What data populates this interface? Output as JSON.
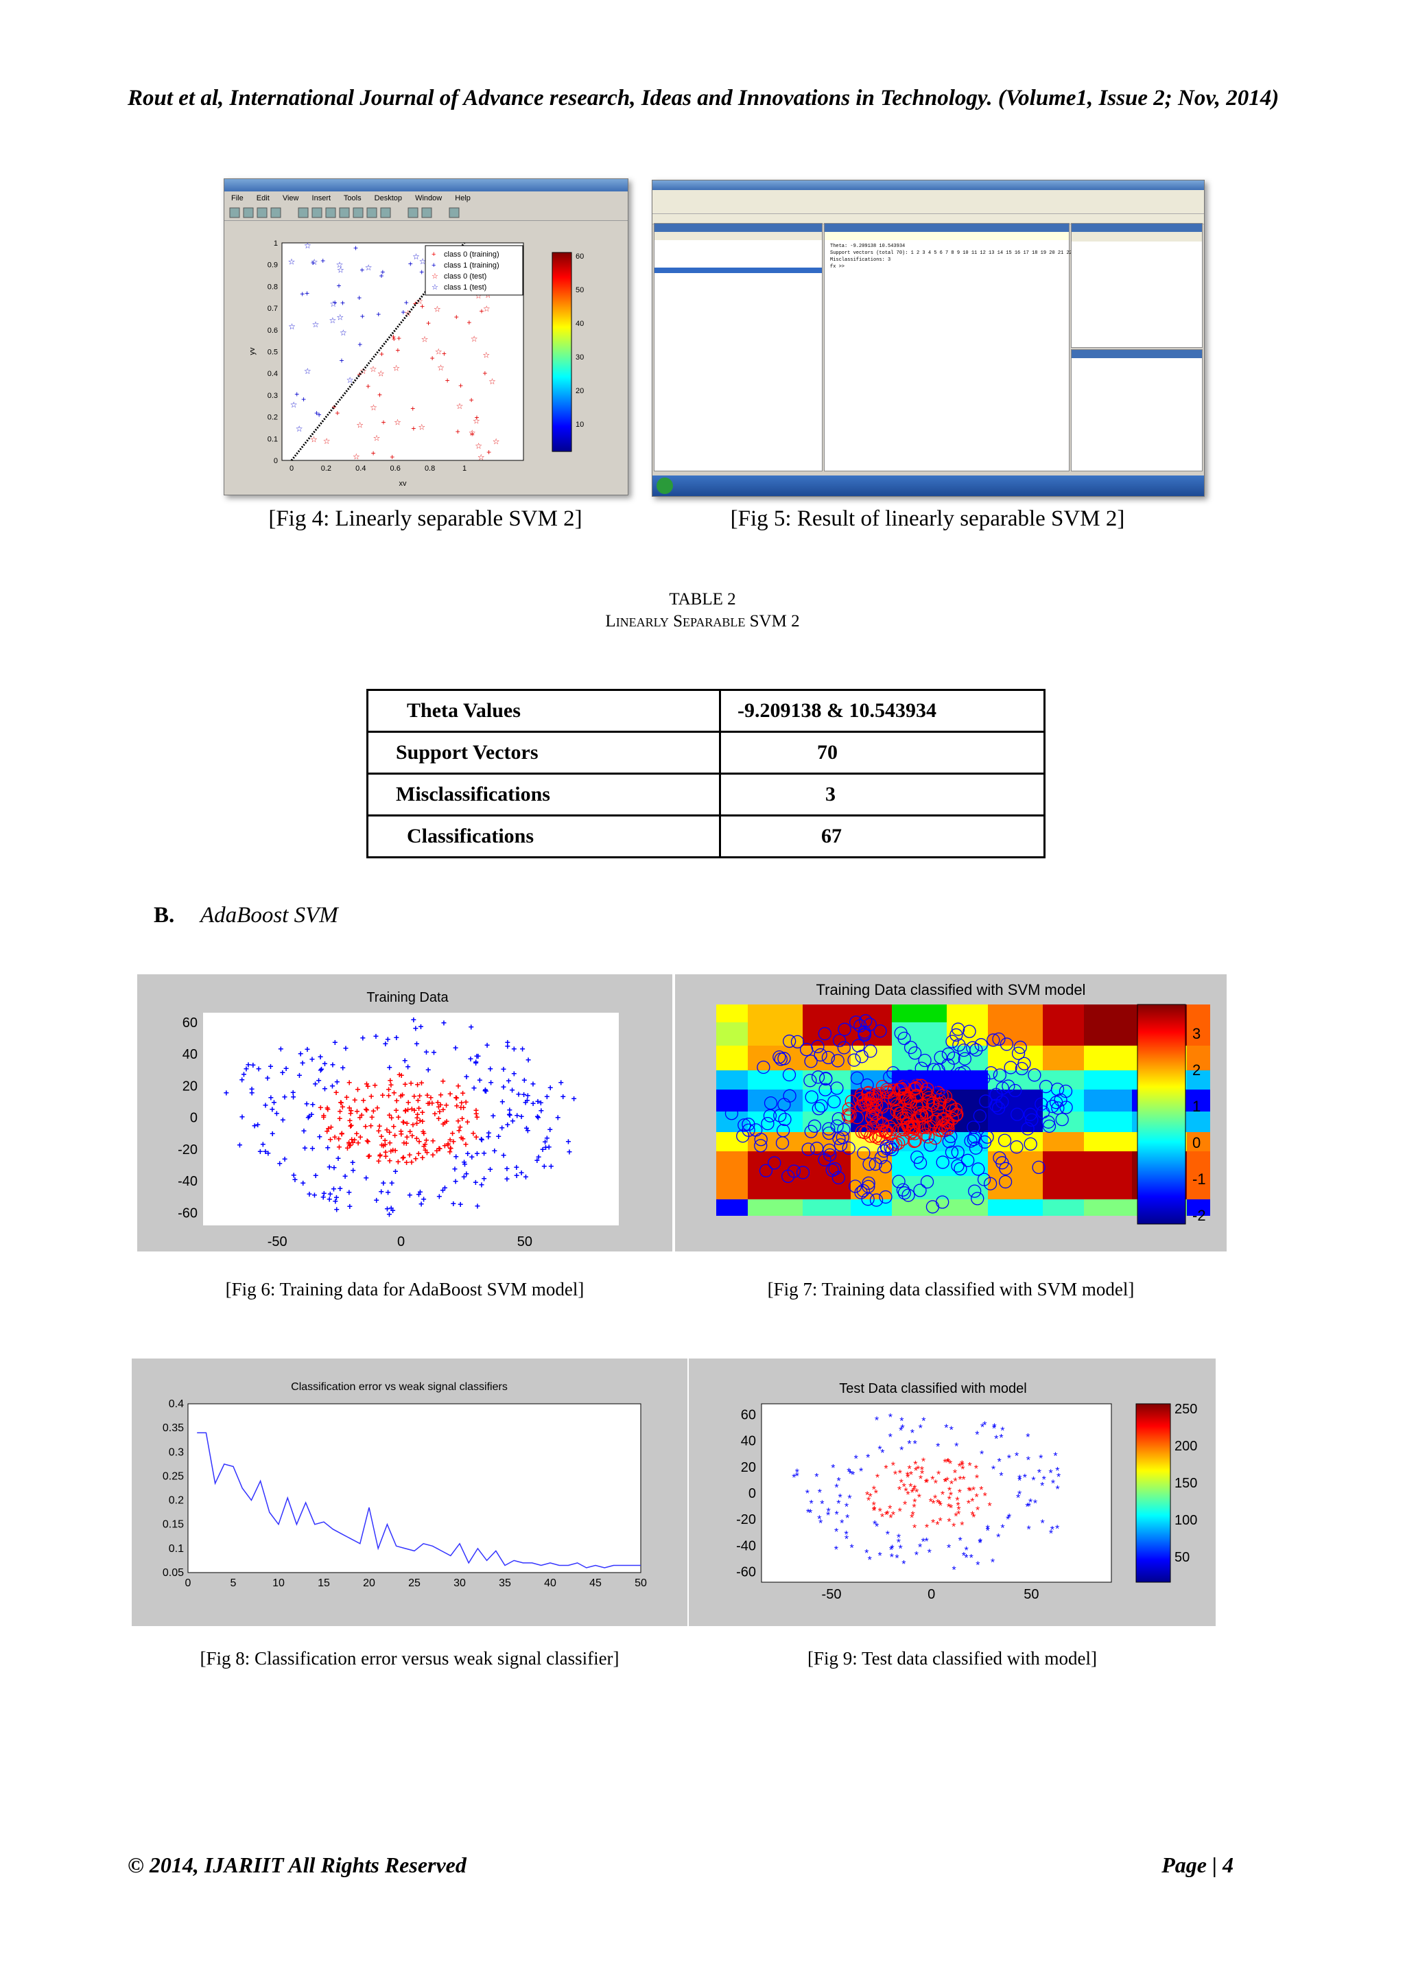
{
  "header": {
    "citation": "Rout et al, International Journal of Advance research, Ideas and Innovations in Technology. (Volume1, Issue 2; Nov, 2014)"
  },
  "fig4": {
    "caption": "[Fig 4: Linearly separable SVM 2]",
    "menu": [
      "File",
      "Edit",
      "View",
      "Insert",
      "Tools",
      "Desktop",
      "Window",
      "Help"
    ],
    "legend": [
      "class 0 (training)",
      "class 1 (training)",
      "class 0 (test)",
      "class 1 (test)"
    ],
    "xlabel": "xv",
    "ylabel": "yv",
    "xticks": [
      "0",
      "0.2",
      "0.4",
      "0.6",
      "0.8",
      "1"
    ],
    "yticks": [
      "0",
      "0.1",
      "0.2",
      "0.3",
      "0.4",
      "0.5",
      "0.6",
      "0.7",
      "0.8",
      "0.9",
      "1"
    ],
    "colorbar_ticks": [
      "10",
      "20",
      "30",
      "40",
      "50",
      "60"
    ]
  },
  "fig5": {
    "caption": "[Fig 5: Result of linearly separable SVM 2]",
    "command_window_lines": [
      "Theta: -9.209138 10.543934",
      "Support vectors (total 70): 1 2 3 4 5 6 7 8 9 10 11 12 13 14 15 16 17 18 19 20 21 22",
      "Misclassifications: 3",
      "fx >>"
    ]
  },
  "table2": {
    "number": "TABLE 2",
    "title": "Linearly Separable SVM 2",
    "rows": [
      {
        "label": "Theta Values",
        "value": "-9.209138 & 10.543934"
      },
      {
        "label": "Support Vectors",
        "value": "70"
      },
      {
        "label": "Misclassifications",
        "value": "3"
      },
      {
        "label": "Classifications",
        "value": "67"
      }
    ]
  },
  "section": {
    "letter": "B.",
    "title": "AdaBoost SVM"
  },
  "fig6": {
    "caption": "[Fig 6: Training data for AdaBoost SVM model]",
    "chart_data": {
      "type": "scatter",
      "title": "Training Data",
      "xticks": [
        "-50",
        "0",
        "50"
      ],
      "yticks": [
        "60",
        "40",
        "20",
        "0",
        "-20",
        "-40",
        "-60"
      ],
      "xlim": [
        -80,
        88
      ],
      "ylim": [
        -68,
        66
      ],
      "colors": {
        "outer": "#0000ff",
        "inner": "#ff0000"
      }
    }
  },
  "fig7": {
    "caption": "[Fig 7: Training data classified with SVM model]",
    "chart_data": {
      "type": "heatmap",
      "title": "Training Data classified with SVM model",
      "colorbar_ticks": [
        "3",
        "2",
        "1",
        "0",
        "-1",
        "-2"
      ]
    }
  },
  "fig8": {
    "caption": "[Fig 8: Classification error versus weak signal classifier]",
    "chart_data": {
      "type": "line",
      "title": "Classification error vs weak signal classifiers",
      "xticks": [
        "0",
        "5",
        "10",
        "15",
        "20",
        "25",
        "30",
        "35",
        "40",
        "45",
        "50"
      ],
      "yticks": [
        "0.4",
        "0.35",
        "0.3",
        "0.25",
        "0.2",
        "0.15",
        "0.1",
        "0.05"
      ],
      "xlim": [
        0,
        50
      ],
      "ylim": [
        0.05,
        0.4
      ],
      "x": [
        1,
        2,
        3,
        4,
        5,
        6,
        7,
        8,
        9,
        10,
        11,
        12,
        13,
        14,
        15,
        16,
        17,
        18,
        19,
        20,
        21,
        22,
        23,
        24,
        25,
        26,
        27,
        28,
        29,
        30,
        31,
        32,
        33,
        34,
        35,
        36,
        37,
        38,
        39,
        40,
        41,
        42,
        43,
        44,
        45,
        46,
        47,
        48,
        49,
        50
      ],
      "y": [
        0.34,
        0.34,
        0.235,
        0.275,
        0.27,
        0.225,
        0.2,
        0.24,
        0.175,
        0.15,
        0.205,
        0.15,
        0.195,
        0.15,
        0.155,
        0.14,
        0.13,
        0.12,
        0.11,
        0.185,
        0.1,
        0.15,
        0.105,
        0.1,
        0.095,
        0.11,
        0.105,
        0.095,
        0.085,
        0.11,
        0.07,
        0.1,
        0.075,
        0.095,
        0.065,
        0.075,
        0.07,
        0.07,
        0.065,
        0.07,
        0.065,
        0.065,
        0.07,
        0.06,
        0.065,
        0.06,
        0.065,
        0.065,
        0.065,
        0.065
      ]
    }
  },
  "fig9": {
    "caption": "[Fig 9: Test data classified with model]",
    "chart_data": {
      "type": "scatter",
      "title": "Test Data classified with model",
      "xticks": [
        "-50",
        "0",
        "50"
      ],
      "yticks": [
        "60",
        "40",
        "20",
        "0",
        "-20",
        "-40",
        "-60"
      ],
      "colorbar_ticks": [
        "250",
        "200",
        "150",
        "100",
        "50"
      ],
      "colors": {
        "outer": "#0000ff",
        "inner": "#ff0000"
      }
    }
  },
  "footer": {
    "copyright": "© 2014, IJARIIT All Rights Reserved",
    "page": "Page | 4"
  }
}
